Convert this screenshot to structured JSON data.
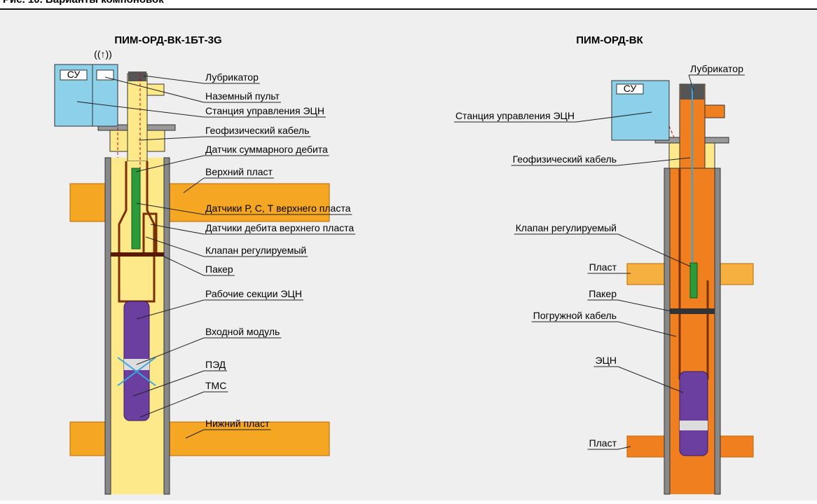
{
  "header": {
    "title": "Рис. 10. Варианты компоновок"
  },
  "left": {
    "title": "ПИМ-ОРД-ВК-1БТ-3G",
    "su": "СУ",
    "labels": [
      "Лубрикатор",
      "Наземный пульт",
      "Станция управления ЭЦН",
      "Геофизический кабель",
      "Датчик суммарного дебита",
      "Верхний пласт",
      "Датчики Р, С, Т верхнего пласта",
      "Датчики дебита верхнего пласта",
      "Клапан регулируемый",
      "Пакер",
      "Рабочие секции ЭЦН",
      "Входной модуль",
      "ПЭД",
      "ТМС",
      "Нижний пласт"
    ]
  },
  "right": {
    "title": "ПИМ-ОРД-ВК",
    "su": "СУ",
    "labels": [
      "Лубрикатор",
      "Станция управления ЭЦН",
      "Геофизический кабель",
      "Клапан регулируемый",
      "Пласт",
      "Пакер",
      "Погружной кабель",
      "ЭЦН",
      "Пласт"
    ]
  }
}
